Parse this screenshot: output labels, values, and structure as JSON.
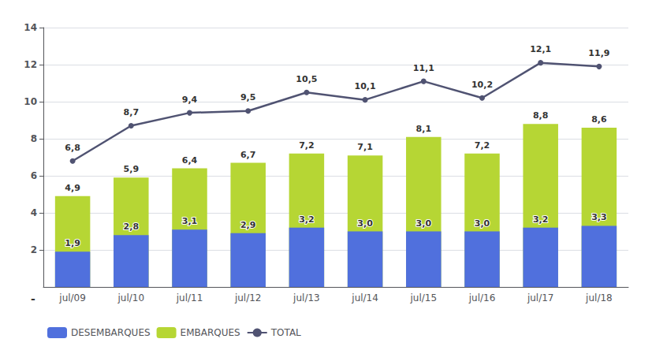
{
  "chart_data": {
    "type": "bar",
    "categories": [
      "jul/09",
      "jul/10",
      "jul/11",
      "jul/12",
      "jul/13",
      "jul/14",
      "jul/15",
      "jul/16",
      "jul/17",
      "jul/18"
    ],
    "series": [
      {
        "name": "DESEMBARQUES",
        "type": "bar",
        "values": [
          1.9,
          2.8,
          3.1,
          2.9,
          3.2,
          3.0,
          3.0,
          3.0,
          3.2,
          3.3
        ],
        "value_labels": [
          "1,9",
          "2,8",
          "3,1",
          "2,9",
          "3,2",
          "3,0",
          "3,0",
          "3,0",
          "3,2",
          "3,3"
        ]
      },
      {
        "name": "EMBARQUES",
        "type": "bar",
        "values": [
          4.9,
          5.9,
          6.4,
          6.7,
          7.2,
          7.1,
          8.1,
          7.2,
          8.8,
          8.6
        ],
        "value_labels": [
          "4,9",
          "5,9",
          "6,4",
          "6,7",
          "7,2",
          "7,1",
          "8,1",
          "7,2",
          "8,8",
          "8,6"
        ]
      },
      {
        "name": "TOTAL",
        "type": "line",
        "marker": "circle",
        "values": [
          6.8,
          8.7,
          9.4,
          9.5,
          10.5,
          10.1,
          11.1,
          10.2,
          12.1,
          11.9
        ],
        "value_labels": [
          "6,8",
          "8,7",
          "9,4",
          "9,5",
          "10,5",
          "10,1",
          "11,1",
          "10,2",
          "12,1",
          "11,9"
        ]
      }
    ],
    "ylim": [
      0,
      14
    ],
    "yticks": [
      2,
      4,
      6,
      8,
      10,
      12,
      14
    ],
    "grid": true,
    "legend": "bottom",
    "data_labels": true,
    "annotations": [
      "-"
    ]
  }
}
